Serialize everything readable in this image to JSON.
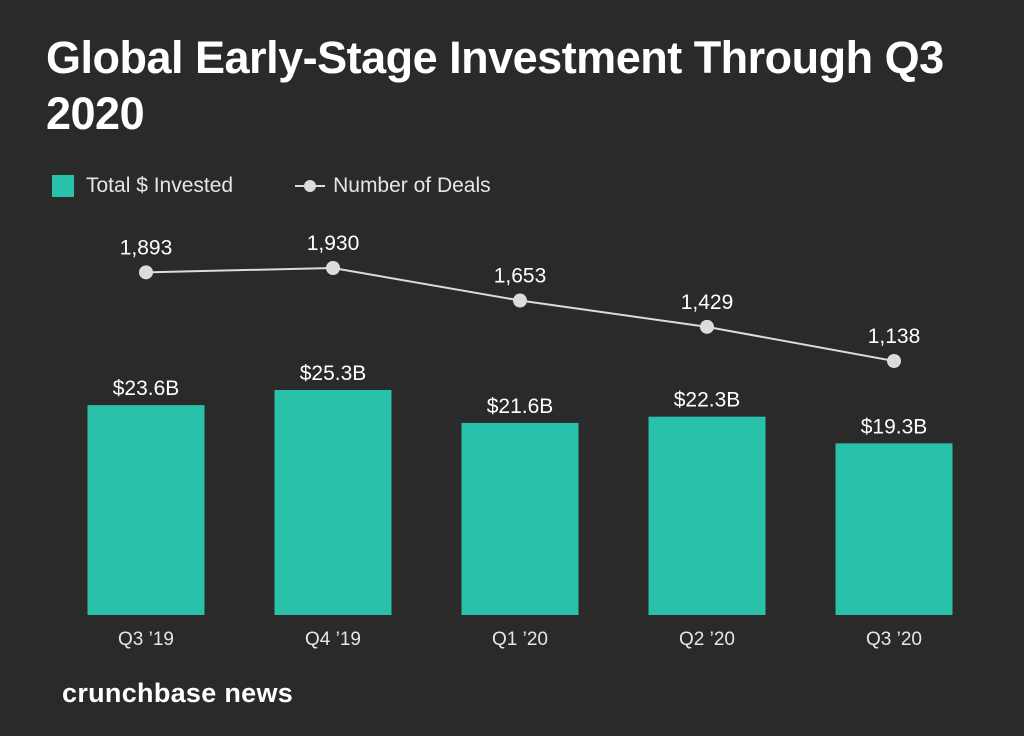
{
  "title": "Global Early-Stage Investment Through Q3 2020",
  "legend": {
    "bar_label": "Total $ Invested",
    "line_label": "Number of Deals"
  },
  "colors": {
    "background": "#2a2a2a",
    "bar": "#2ac1ab",
    "line": "#dcdcdc",
    "text": "#ffffff"
  },
  "chart_data": {
    "type": "bar",
    "title": "Global Early-Stage Investment Through Q3 2020",
    "categories": [
      "Q3 ’19",
      "Q4 ’19",
      "Q1 ’20",
      "Q2 ’20",
      "Q3 ’20"
    ],
    "series": [
      {
        "name": "Total $ Invested",
        "type": "bar",
        "values": [
          23.6,
          25.3,
          21.6,
          22.3,
          19.3
        ],
        "labels": [
          "$23.6B",
          "$25.3B",
          "$21.6B",
          "$22.3B",
          "$19.3B"
        ]
      },
      {
        "name": "Number of Deals",
        "type": "line",
        "values": [
          1893,
          1930,
          1653,
          1429,
          1138
        ],
        "labels": [
          "1,893",
          "1,930",
          "1,653",
          "1,429",
          "1,138"
        ]
      }
    ],
    "xlabel": "",
    "ylabel": "",
    "grid": false,
    "legend_position": "top-left"
  },
  "footer": {
    "logo_text": "crunchbase news"
  }
}
